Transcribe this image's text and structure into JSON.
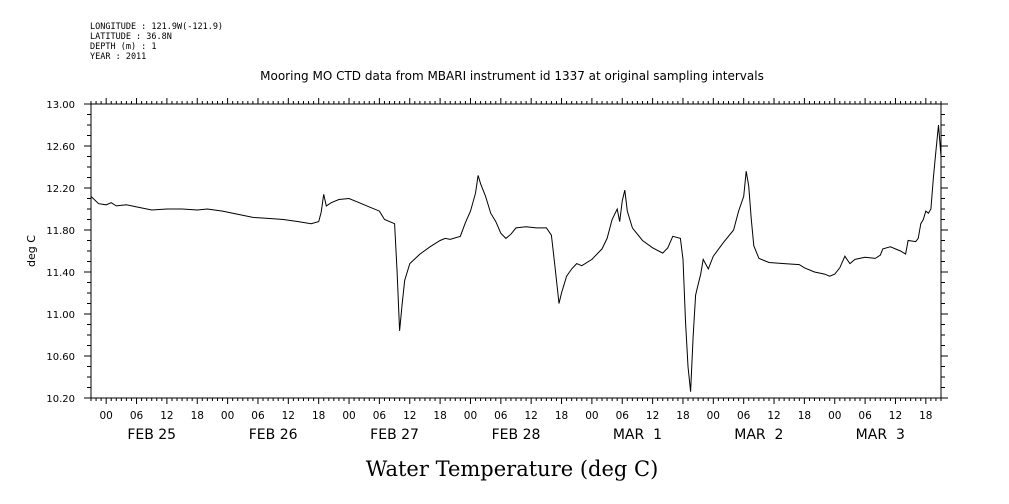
{
  "meta_lines": [
    "LONGITUDE : 121.9W(-121.9)",
    "LATITUDE : 36.8N",
    "DEPTH (m) : 1",
    "YEAR : 2011"
  ],
  "chart_data": {
    "type": "line",
    "title": "Mooring MO CTD data from MBARI instrument id 1337 at original sampling intervals",
    "xlabel": "Water Temperature (deg C)",
    "ylabel": "deg C",
    "grid": false,
    "ylim": [
      10.2,
      13.0
    ],
    "yticks": [
      "13.00",
      "12.60",
      "12.20",
      "11.80",
      "11.40",
      "11.00",
      "10.60",
      "10.20"
    ],
    "x_hour_ticks": [
      "00",
      "06",
      "12",
      "18",
      "00",
      "06",
      "12",
      "18",
      "00",
      "06",
      "12",
      "18",
      "00",
      "06",
      "12",
      "18",
      "00",
      "06",
      "12",
      "18",
      "00",
      "06",
      "12",
      "18",
      "00",
      "06",
      "12",
      "18"
    ],
    "x_day_labels": [
      "FEB 25",
      "FEB 26",
      "FEB 27",
      "FEB 28",
      "MAR  1",
      "MAR  2",
      "MAR  3"
    ],
    "x_range_hours": [
      -3,
      165
    ],
    "x_unit": "hours since 00 FEB 25 2011",
    "series": [
      {
        "values": [
          [
            -3,
            12.12
          ],
          [
            -1.5,
            12.05
          ],
          [
            0,
            12.04
          ],
          [
            1,
            12.06
          ],
          [
            2,
            12.03
          ],
          [
            4,
            12.04
          ],
          [
            6,
            12.02
          ],
          [
            9,
            11.99
          ],
          [
            12,
            12.0
          ],
          [
            15,
            12.0
          ],
          [
            18,
            11.99
          ],
          [
            20,
            12.0
          ],
          [
            23,
            11.98
          ],
          [
            26,
            11.95
          ],
          [
            29,
            11.92
          ],
          [
            32,
            11.91
          ],
          [
            35,
            11.9
          ],
          [
            38,
            11.88
          ],
          [
            40.5,
            11.86
          ],
          [
            42,
            11.88
          ],
          [
            42.5,
            11.97
          ],
          [
            43,
            12.14
          ],
          [
            43.5,
            12.03
          ],
          [
            44.5,
            12.06
          ],
          [
            46,
            12.09
          ],
          [
            48,
            12.1
          ],
          [
            50,
            12.06
          ],
          [
            52,
            12.02
          ],
          [
            54,
            11.98
          ],
          [
            55,
            11.9
          ],
          [
            57,
            11.86
          ],
          [
            57.5,
            11.4
          ],
          [
            58,
            10.84
          ],
          [
            58.5,
            11.1
          ],
          [
            59,
            11.32
          ],
          [
            60,
            11.48
          ],
          [
            62,
            11.57
          ],
          [
            64,
            11.64
          ],
          [
            66,
            11.7
          ],
          [
            67,
            11.72
          ],
          [
            68,
            11.71
          ],
          [
            70,
            11.74
          ],
          [
            71,
            11.87
          ],
          [
            72,
            11.98
          ],
          [
            73,
            12.15
          ],
          [
            73.5,
            12.32
          ],
          [
            74,
            12.24
          ],
          [
            75,
            12.12
          ],
          [
            76,
            11.96
          ],
          [
            77,
            11.88
          ],
          [
            78,
            11.77
          ],
          [
            79,
            11.72
          ],
          [
            80,
            11.76
          ],
          [
            81,
            11.82
          ],
          [
            83,
            11.83
          ],
          [
            85,
            11.82
          ],
          [
            87,
            11.82
          ],
          [
            88,
            11.75
          ],
          [
            88.7,
            11.45
          ],
          [
            89.5,
            11.1
          ],
          [
            90,
            11.2
          ],
          [
            91,
            11.36
          ],
          [
            92,
            11.43
          ],
          [
            93,
            11.48
          ],
          [
            94,
            11.46
          ],
          [
            96,
            11.52
          ],
          [
            98,
            11.62
          ],
          [
            99,
            11.72
          ],
          [
            100,
            11.9
          ],
          [
            101,
            12.0
          ],
          [
            101.5,
            11.88
          ],
          [
            102,
            12.08
          ],
          [
            102.5,
            12.18
          ],
          [
            103,
            11.98
          ],
          [
            104,
            11.82
          ],
          [
            106,
            11.7
          ],
          [
            108,
            11.63
          ],
          [
            110,
            11.58
          ],
          [
            111,
            11.63
          ],
          [
            112,
            11.74
          ],
          [
            113.5,
            11.72
          ],
          [
            114,
            11.52
          ],
          [
            114.5,
            10.93
          ],
          [
            115,
            10.5
          ],
          [
            115.5,
            10.26
          ],
          [
            116,
            10.78
          ],
          [
            116.5,
            11.18
          ],
          [
            117,
            11.28
          ],
          [
            117.5,
            11.38
          ],
          [
            118,
            11.52
          ],
          [
            119,
            11.43
          ],
          [
            120,
            11.55
          ],
          [
            122,
            11.68
          ],
          [
            124,
            11.8
          ],
          [
            125,
            11.98
          ],
          [
            126,
            12.12
          ],
          [
            126.5,
            12.36
          ],
          [
            127,
            12.22
          ],
          [
            127.5,
            11.9
          ],
          [
            128,
            11.65
          ],
          [
            129,
            11.53
          ],
          [
            131,
            11.49
          ],
          [
            134,
            11.48
          ],
          [
            137,
            11.47
          ],
          [
            138,
            11.44
          ],
          [
            140,
            11.4
          ],
          [
            142,
            11.38
          ],
          [
            143,
            11.36
          ],
          [
            144,
            11.38
          ],
          [
            145,
            11.44
          ],
          [
            146,
            11.55
          ],
          [
            147,
            11.48
          ],
          [
            148,
            11.52
          ],
          [
            150,
            11.54
          ],
          [
            152,
            11.53
          ],
          [
            153,
            11.56
          ],
          [
            153.5,
            11.62
          ],
          [
            155,
            11.64
          ],
          [
            157,
            11.6
          ],
          [
            158,
            11.57
          ],
          [
            158.5,
            11.7
          ],
          [
            160,
            11.69
          ],
          [
            160.5,
            11.72
          ],
          [
            161,
            11.86
          ],
          [
            161.5,
            11.9
          ],
          [
            162,
            11.98
          ],
          [
            162.5,
            11.96
          ],
          [
            163,
            12.0
          ],
          [
            163.5,
            12.3
          ],
          [
            164,
            12.55
          ],
          [
            164.5,
            12.8
          ],
          [
            165,
            12.5
          ]
        ]
      }
    ]
  }
}
